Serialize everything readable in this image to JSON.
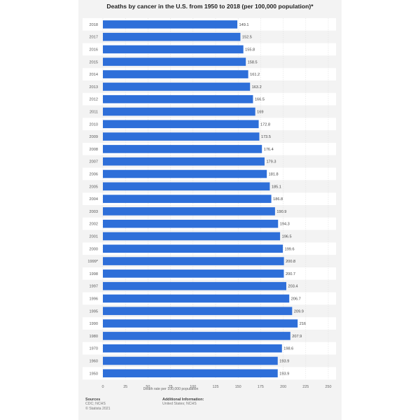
{
  "chart_data": {
    "type": "bar",
    "orientation": "horizontal",
    "title": "Deaths by cancer in the U.S. from 1950 to 2018 (per 100,000 population)*",
    "xlabel": "Death rate per 100,000 population",
    "ylabel": "",
    "xlim": [
      0,
      250
    ],
    "xticks": [
      "0",
      "25",
      "50",
      "75",
      "100",
      "125",
      "150",
      "175",
      "200",
      "225",
      "250"
    ],
    "grid": true,
    "categories": [
      "2018",
      "2017",
      "2016",
      "2015",
      "2014",
      "2013",
      "2012",
      "2011",
      "2010",
      "2009",
      "2008",
      "2007",
      "2006",
      "2005",
      "2004",
      "2003",
      "2002",
      "2001",
      "2000",
      "1999*",
      "1998",
      "1997",
      "1996",
      "1995",
      "1990",
      "1980",
      "1970",
      "1960",
      "1950"
    ],
    "values": [
      149.1,
      152.5,
      155.8,
      158.5,
      161.2,
      163.2,
      166.5,
      169,
      172.8,
      173.5,
      176.4,
      179.3,
      181.8,
      185.1,
      186.8,
      190.9,
      194.3,
      196.5,
      199.6,
      200.8,
      200.7,
      203.4,
      206.7,
      209.9,
      216,
      207.9,
      198.6,
      193.9,
      193.9
    ],
    "value_labels": [
      "149.1",
      "152.5",
      "155.8",
      "158.5",
      "161.2",
      "163.2",
      "166.5",
      "169",
      "172.8",
      "173.5",
      "176.4",
      "179.3",
      "181.8",
      "185.1",
      "186.8",
      "190.9",
      "194.3",
      "196.5",
      "199.6",
      "200.8",
      "200.7",
      "203.4",
      "206.7",
      "209.9",
      "216",
      "207.9",
      "198.6",
      "193.9",
      "193.9"
    ],
    "bar_color": "#2e6fd9"
  },
  "footer": {
    "sources_title": "Sources",
    "sources_line1": "CDC; NCHS",
    "sources_line2": "© Statista 2021",
    "info_title": "Additional Information:",
    "info_line1": "United States; NCHS"
  }
}
